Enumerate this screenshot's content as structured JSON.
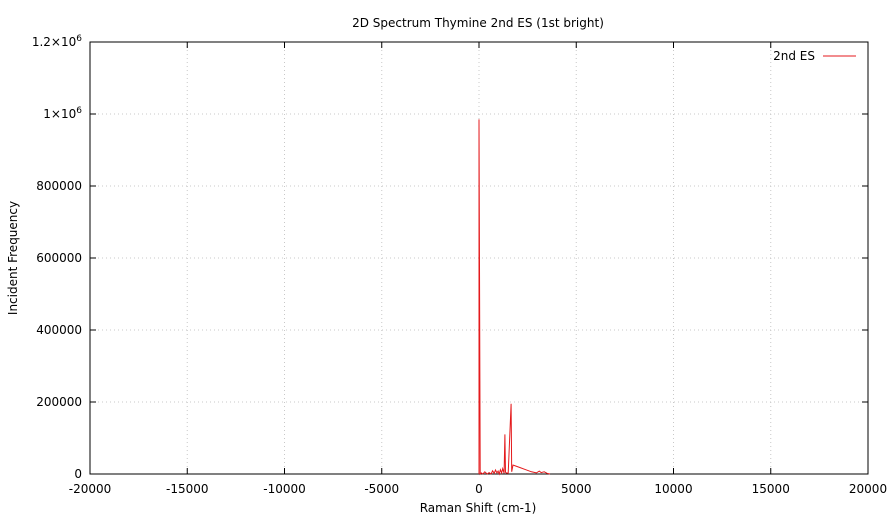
{
  "chart_data": {
    "type": "line",
    "title": "2D Spectrum Thymine 2nd ES (1st bright)",
    "xlabel": "Raman Shift (cm-1)",
    "ylabel": "Incident Frequency",
    "xlim": [
      -20000,
      20000
    ],
    "ylim": [
      0,
      1200000
    ],
    "grid": true,
    "legend_position": "top-right",
    "x_ticks": [
      {
        "value": -20000,
        "label": "-20000"
      },
      {
        "value": -15000,
        "label": "-15000"
      },
      {
        "value": -10000,
        "label": "-10000"
      },
      {
        "value": -5000,
        "label": "-5000"
      },
      {
        "value": 0,
        "label": "0"
      },
      {
        "value": 5000,
        "label": "5000"
      },
      {
        "value": 10000,
        "label": "10000"
      },
      {
        "value": 15000,
        "label": "15000"
      },
      {
        "value": 20000,
        "label": "20000"
      }
    ],
    "y_ticks": [
      {
        "value": 0,
        "label": "0"
      },
      {
        "value": 200000,
        "label": "200000"
      },
      {
        "value": 400000,
        "label": "400000"
      },
      {
        "value": 600000,
        "label": "600000"
      },
      {
        "value": 800000,
        "label": "800000"
      },
      {
        "value": 1000000,
        "label": "1×10",
        "sup": "6"
      },
      {
        "value": 1200000,
        "label": "1.2×10",
        "sup": "6"
      }
    ],
    "series": [
      {
        "name": "2nd ES",
        "color": "#e41a1c",
        "x": [
          0,
          0,
          60,
          120,
          200,
          300,
          420,
          520,
          620,
          700,
          780,
          850,
          920,
          980,
          1040,
          1100,
          1160,
          1220,
          1290,
          1330,
          1360,
          1400,
          1500,
          1650,
          1680,
          1750,
          1900,
          2100,
          2400,
          2700,
          2950,
          3100,
          3200,
          3350,
          3500,
          3650
        ],
        "y": [
          0,
          985000,
          0,
          3000,
          0,
          6000,
          0,
          4000,
          0,
          9000,
          2000,
          11000,
          3000,
          8000,
          0,
          12000,
          3000,
          15000,
          2000,
          110000,
          5000,
          3000,
          2000,
          195000,
          6000,
          25000,
          22000,
          18000,
          12000,
          6000,
          3000,
          8000,
          4000,
          6000,
          2000,
          0
        ]
      }
    ]
  }
}
